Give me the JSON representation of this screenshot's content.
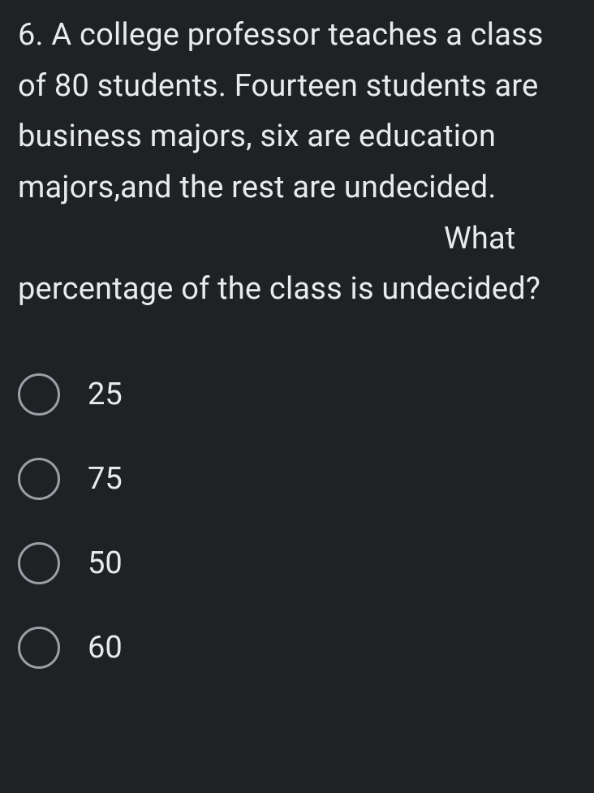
{
  "question": {
    "part1": "6. A college professor teaches a class of 80 students. Fourteen students are business majors, six are education majors,and the rest are undecided.",
    "part2": "What percentage of the class is undecided?"
  },
  "options": [
    {
      "label": "25"
    },
    {
      "label": "75"
    },
    {
      "label": "50"
    },
    {
      "label": "60"
    }
  ],
  "colors": {
    "background": "#202124",
    "text": "#e8eaed",
    "radio_border": "#9aa0a6"
  },
  "typography": {
    "question_fontsize": 38,
    "option_fontsize": 38,
    "line_height": 1.65
  }
}
